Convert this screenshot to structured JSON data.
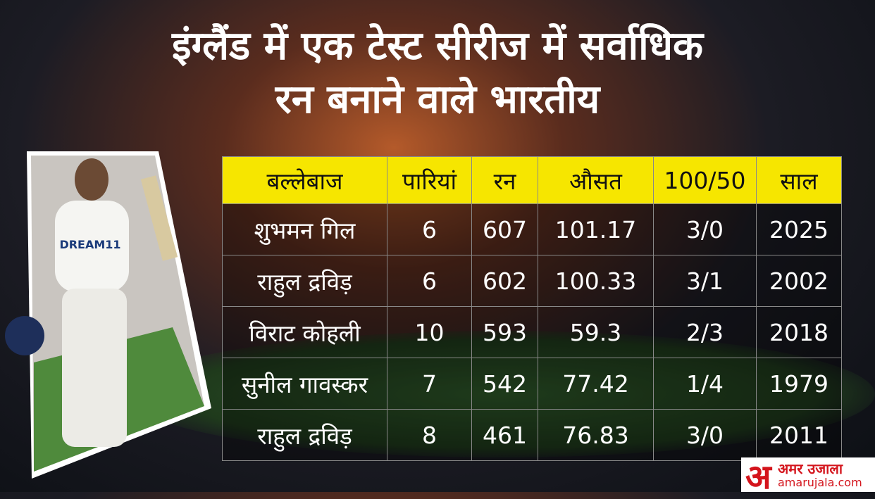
{
  "header": {
    "title_lines": [
      "इंग्लैंड में एक टेस्ट सीरीज में सर्वाधिक",
      "रन बनाने वाले भारतीय"
    ]
  },
  "table": {
    "columns": [
      "बल्लेबाज",
      "पारियां",
      "रन",
      "औसत",
      "100/50",
      "साल"
    ],
    "rows": [
      [
        "शुभमन गिल",
        "6",
        "607",
        "101.17",
        "3/0",
        "2025"
      ],
      [
        "राहुल द्रविड़",
        "6",
        "602",
        "100.33",
        "3/1",
        "2002"
      ],
      [
        "विराट कोहली",
        "10",
        "593",
        "59.3",
        "2/3",
        "2018"
      ],
      [
        "सुनील गावस्कर",
        "7",
        "542",
        "77.42",
        "1/4",
        "1979"
      ],
      [
        "राहुल द्रविड़",
        "8",
        "461",
        "76.83",
        "3/0",
        "2011"
      ]
    ]
  },
  "logo": {
    "mark": "अ",
    "name": "अमर उजाला",
    "site": "amarujala.com"
  }
}
